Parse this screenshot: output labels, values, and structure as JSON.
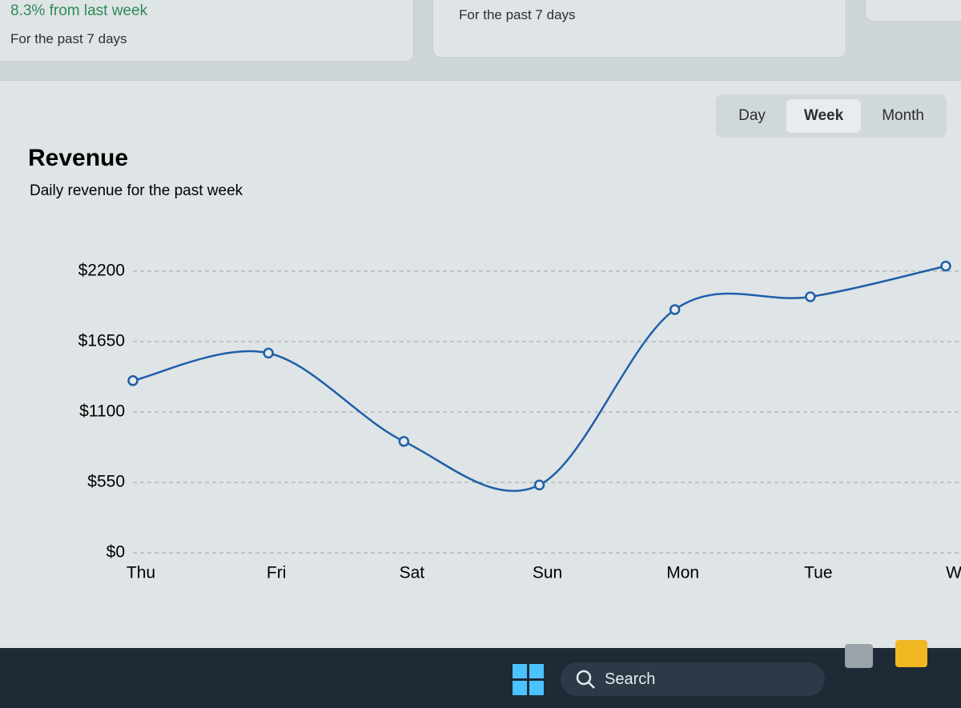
{
  "cards": [
    {
      "change": "8.3% from last week",
      "period": "For the past 7 days"
    },
    {
      "period": "For the past 7 days"
    }
  ],
  "tabs": [
    "Day",
    "Week",
    "Month"
  ],
  "chart_data": {
    "type": "line",
    "title": "Revenue",
    "subtitle": "Daily revenue for the past week",
    "categories": [
      "Thu",
      "Fri",
      "Sat",
      "Sun",
      "Mon",
      "Tue",
      "W"
    ],
    "series": [
      {
        "name": "Revenue",
        "color": "#1f5fa8",
        "values": [
          1345,
          1560,
          870,
          530,
          1900,
          2000,
          2240
        ]
      }
    ],
    "ylim": [
      0,
      2750
    ],
    "yticks": [
      {
        "value": 0,
        "label": "$0"
      },
      {
        "value": 550,
        "label": "$550"
      },
      {
        "value": 1100,
        "label": "$1100"
      },
      {
        "value": 1650,
        "label": "$1650"
      },
      {
        "value": 2200,
        "label": "$2200"
      }
    ],
    "grid": true
  },
  "taskbar": {
    "search": "Search"
  }
}
